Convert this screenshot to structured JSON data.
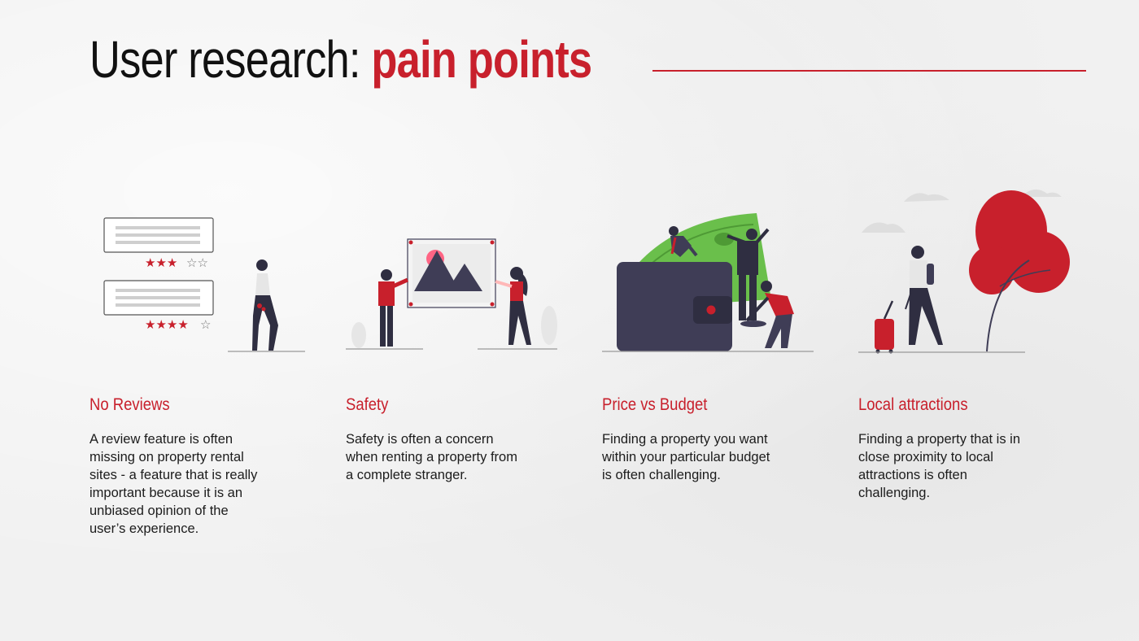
{
  "slide": {
    "title_plain": "User research:",
    "title_accent": "pain points"
  },
  "colors": {
    "accent": "#c8202c",
    "dark": "#3f3d56",
    "green": "#6abf4b",
    "background": "#f1f1f1"
  },
  "pain_points": [
    {
      "heading": "No Reviews",
      "body": "A review feature is often missing on property rental sites - a feature that is really important because it is an unbiased opinion of the user’s experience.",
      "illustration": "review-cards-illustration",
      "ratings": [
        3,
        4
      ]
    },
    {
      "heading": "Safety",
      "body": "Safety is often a concern when renting a property from a complete stranger.",
      "illustration": "picture-frame-illustration"
    },
    {
      "heading": "Price vs Budget",
      "body": "Finding a property you want within your particular budget is often challenging.",
      "illustration": "wallet-money-illustration"
    },
    {
      "heading": "Local attractions",
      "body": "Finding a property that is in close proximity to local attractions is often challenging.",
      "illustration": "traveler-tree-illustration"
    }
  ]
}
